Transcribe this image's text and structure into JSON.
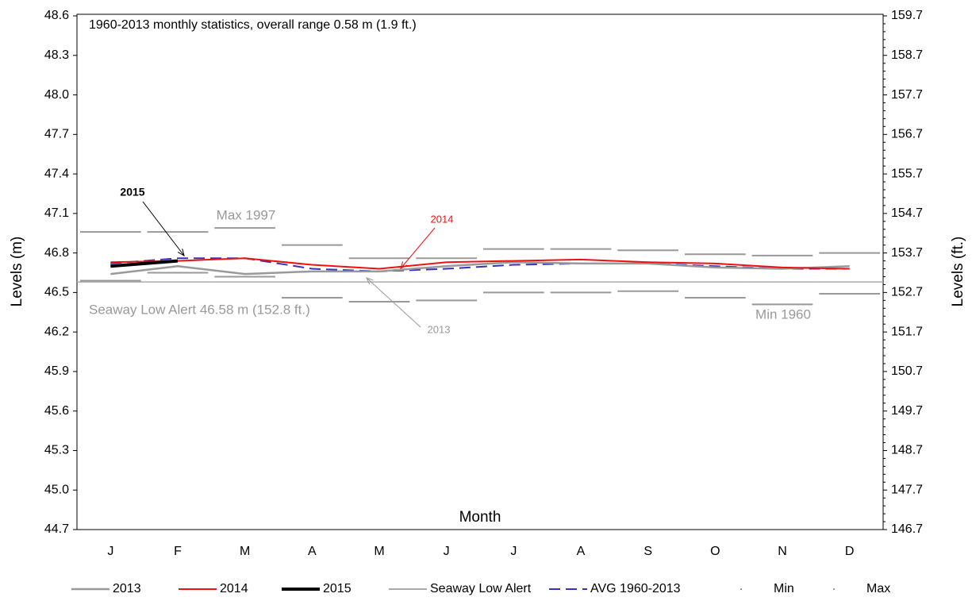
{
  "chart_data": {
    "type": "line",
    "title": "1960-2013 monthly statistics, overall range 0.58 m (1.9 ft.)",
    "x_label": "Month",
    "y_label": "Levels (m)",
    "y2_label": "Levels (ft.)",
    "categories": [
      "J",
      "F",
      "M",
      "A",
      "M",
      "J",
      "J",
      "A",
      "S",
      "O",
      "N",
      "D"
    ],
    "ylim": [
      44.7,
      48.6
    ],
    "yticks": [
      44.7,
      {
        "value": 45.0,
        "label": "45.0"
      },
      45.3,
      45.6,
      45.9,
      46.2,
      46.5,
      46.8,
      47.1,
      47.4,
      47.7,
      {
        "value": 48.0,
        "label": "48.0"
      },
      48.3,
      48.6
    ],
    "y2lim": [
      146.7,
      159.7
    ],
    "y2ticks": [
      146.7,
      147.7,
      148.7,
      149.7,
      150.7,
      151.7,
      152.7,
      153.7,
      154.7,
      155.7,
      156.7,
      157.7,
      158.7,
      159.7
    ],
    "series": [
      {
        "name": "2013",
        "color": "#999999",
        "style": "line",
        "width": 2.5,
        "values": [
          46.64,
          46.7,
          46.64,
          46.66,
          46.66,
          46.7,
          46.73,
          46.72,
          46.72,
          46.69,
          46.68,
          46.7
        ]
      },
      {
        "name": "2014",
        "color": "#ee1111",
        "style": "line",
        "width": 2,
        "values": [
          46.73,
          46.74,
          46.76,
          46.71,
          46.68,
          46.73,
          46.74,
          46.75,
          46.73,
          46.72,
          46.69,
          46.68
        ]
      },
      {
        "name": "2015",
        "color": "#000000",
        "style": "line",
        "width": 4,
        "values": [
          46.7,
          46.74,
          null,
          null,
          null,
          null,
          null,
          null,
          null,
          null,
          null,
          null
        ]
      },
      {
        "name": "Seaway Low Alert",
        "color": "#aaaaaa",
        "style": "hline",
        "width": 1.5,
        "values": [
          46.58,
          46.58,
          46.58,
          46.58,
          46.58,
          46.58,
          46.58,
          46.58,
          46.58,
          46.58,
          46.58,
          46.58
        ]
      },
      {
        "name": "AVG 1960-2013",
        "color": "#3333bb",
        "style": "dashed",
        "width": 2,
        "values": [
          46.72,
          46.76,
          46.76,
          46.68,
          46.66,
          46.68,
          46.71,
          46.72,
          46.72,
          46.7,
          46.68,
          46.68
        ]
      },
      {
        "name": "Min",
        "color": "#999999",
        "style": "step",
        "width": 2,
        "values": [
          46.59,
          46.65,
          46.62,
          46.46,
          46.43,
          46.44,
          46.5,
          46.5,
          46.51,
          46.46,
          46.41,
          46.49
        ]
      },
      {
        "name": "Max",
        "color": "#999999",
        "style": "step",
        "width": 2,
        "values": [
          46.96,
          46.96,
          46.99,
          46.86,
          46.76,
          46.76,
          46.83,
          46.83,
          46.82,
          46.79,
          46.78,
          46.8
        ]
      }
    ],
    "annotations": [
      {
        "text": "2015",
        "color": "#000000",
        "bold": true
      },
      {
        "text": "Max 1997",
        "color": "#999999"
      },
      {
        "text": "2014",
        "color": "#ee1111"
      },
      {
        "text": "Seaway Low Alert 46.58 m (152.8 ft.)",
        "color": "#999999"
      },
      {
        "text": "2013",
        "color": "#999999"
      },
      {
        "text": "Min 1960",
        "color": "#999999"
      }
    ]
  }
}
